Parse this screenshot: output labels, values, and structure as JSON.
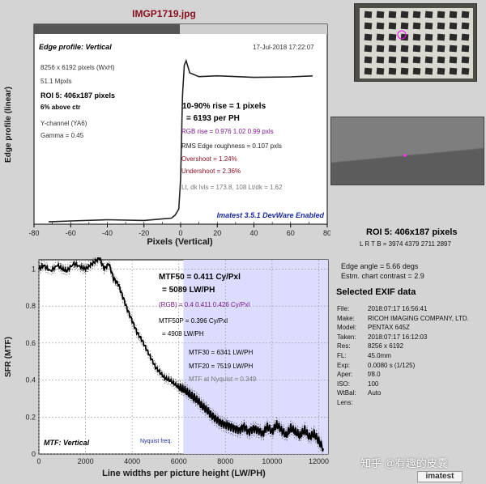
{
  "header": {
    "title": "IMGP1719.jpg"
  },
  "chart_data": [
    {
      "type": "line",
      "title": "Edge profile: Vertical",
      "xlabel": "Pixels (Vertical)",
      "ylabel": "Edge profile (linear)",
      "xlim": [
        -80,
        80
      ],
      "ylim": [
        0,
        1.15
      ],
      "xticks": [
        "-80",
        "-60",
        "-40",
        "-20",
        "0",
        "20",
        "40",
        "60",
        "80"
      ],
      "grid": false,
      "series": [
        {
          "x": [
            -72,
            -60,
            -40,
            -20,
            -10,
            -5,
            -3,
            -2,
            -1,
            0,
            1,
            2,
            3,
            5,
            10,
            20,
            40,
            60,
            72
          ],
          "y": [
            0.02,
            0.02,
            0.025,
            0.03,
            0.03,
            0.04,
            0.06,
            0.08,
            0.1,
            0.3,
            0.85,
            1.05,
            1.08,
            1.0,
            0.98,
            0.975,
            0.975,
            0.975,
            0.975
          ]
        }
      ]
    },
    {
      "type": "line",
      "title": "MTF: Vertical",
      "xlabel": "Line widths per picture height (LW/PH)",
      "ylabel": "SFR (MTF)",
      "xlim": [
        0,
        12400
      ],
      "ylim": [
        0,
        1.05
      ],
      "xticks": [
        "0",
        "2000",
        "4000",
        "6000",
        "8000",
        "10000",
        "12000"
      ],
      "yticks": [
        "0",
        "0.2",
        "0.4",
        "0.6",
        "0.8",
        "1"
      ],
      "grid": true,
      "nyquist_x": 6193,
      "nyquist_label": "Nyquist freq.",
      "series": [
        {
          "x": [
            0,
            200,
            500,
            800,
            1000,
            1200,
            1500,
            1800,
            2000,
            2200,
            2400,
            2600,
            2800,
            3000,
            3200,
            3400,
            3600,
            3800,
            4000,
            4200,
            4400,
            4600,
            4800,
            5000,
            5200,
            5400,
            5600,
            5800,
            6000,
            6200,
            6400,
            6600,
            6800,
            7000,
            7200,
            7400,
            7600,
            7800,
            8000,
            8200,
            8400,
            8600,
            8800,
            9000,
            9200,
            9400,
            9600,
            9800,
            10000,
            10200,
            10400,
            10600,
            10800,
            11000,
            11200,
            11400,
            11600,
            11800,
            12000,
            12200
          ],
          "y": [
            1.0,
            1.02,
            0.99,
            1.02,
            1.0,
            0.99,
            1.03,
            1.01,
            1.0,
            1.02,
            1.04,
            1.06,
            1.0,
            1.03,
            0.95,
            0.92,
            0.85,
            0.78,
            0.72,
            0.66,
            0.62,
            0.57,
            0.52,
            0.47,
            0.44,
            0.41,
            0.4,
            0.38,
            0.36,
            0.35,
            0.33,
            0.31,
            0.29,
            0.26,
            0.24,
            0.21,
            0.19,
            0.17,
            0.16,
            0.15,
            0.14,
            0.13,
            0.15,
            0.12,
            0.14,
            0.13,
            0.11,
            0.15,
            0.12,
            0.16,
            0.13,
            0.1,
            0.14,
            0.12,
            0.1,
            0.13,
            0.09,
            0.11,
            0.07,
            0.03
          ]
        }
      ]
    }
  ],
  "edge": {
    "size": "8256 x 6192 pixels (WxH)",
    "mpxls": "51.1 Mpxls",
    "roi": "ROI 5:  406x187 pixels",
    "above": "6% above ctr",
    "channel": "Y-channel  (YA6)",
    "gamma": "Gamma = 0.45",
    "date": "17-Jul-2018 17:22:07",
    "rise": "10-90% rise = 1 pixels",
    "rise_ph": "= 6193 per PH",
    "rgb_rise": "RGB rise = 0.976  1.02  0.99 pxls",
    "roughness": "RMS Edge roughness = 0.107 pxls",
    "overshoot": "Overshoot = 1.24%",
    "undershoot": "Undershoot = 2.36%",
    "levels": "Lt, dk lvls = 173.8, 108   Lt/dk = 1.62",
    "imatest": "Imatest 3.5.1 DevWare Enabled"
  },
  "mtf": {
    "mtf50": "MTF50 = 0.411 Cy/Pxl",
    "mtf50_lw": "= 5089 LW/PH",
    "rgb": "(RGB) = 0.4  0.411  0.426 Cy/Pxl",
    "mtf50p": "MTF50P = 0.396 Cy/Pxl",
    "mtf50p_lw": "= 4908 LW/PH",
    "mtf30": "MTF30 = 6341 LW/PH",
    "mtf20": "MTF20 = 7519 LW/PH",
    "nyq": "MTF at Nyquist = 0.349"
  },
  "right": {
    "roi": "ROI 5:  406x187 pixels",
    "lrtb": "L  R  T  B = 3974  4379  2711  2897",
    "angle": "Edge angle = 5.66 degs",
    "contrast": "Estm. chart contrast = 2.9",
    "exif_title": "Selected EXIF data",
    "exif": [
      {
        "label": "File:",
        "value": "2018:07:17 16:56:41"
      },
      {
        "label": "Make:",
        "value": "RICOH IMAGING COMPANY, LTD."
      },
      {
        "label": "Model:",
        "value": "PENTAX 645Z"
      },
      {
        "label": "Taken:",
        "value": "2018:07:17 16:12:03"
      },
      {
        "label": "Res:",
        "value": "8256 x 6192"
      },
      {
        "label": "FL:",
        "value": "45.0mm"
      },
      {
        "label": "Exp:",
        "value": "0.0080 s  (1/125)"
      },
      {
        "label": "Aper:",
        "value": "f/8.0"
      },
      {
        "label": "ISO:",
        "value": "100"
      },
      {
        "label": "WtBal:",
        "value": "Auto"
      },
      {
        "label": "Lens:",
        "value": ""
      }
    ]
  },
  "watermark": "知乎 @有趣的皮囊",
  "logo": "imatest",
  "colors": {
    "title": "#8a1020",
    "purple": "#7a1a8a",
    "fill": "#dcdcff",
    "imatest_blue": "#1a2aa0"
  }
}
